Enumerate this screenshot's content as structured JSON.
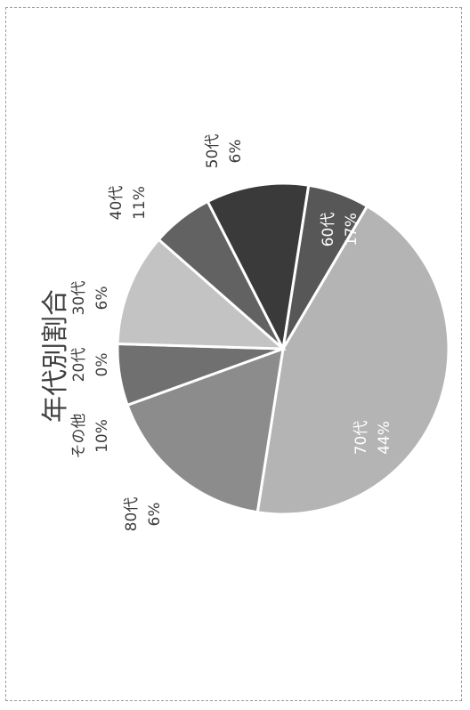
{
  "chart_data": {
    "type": "pie",
    "title": "年代別割合",
    "slices": [
      {
        "name": "70代",
        "value": 44,
        "label": "44%",
        "color": "#b4b4b4"
      },
      {
        "name": "60代",
        "value": 17,
        "label": "17%",
        "color": "#8c8c8c"
      },
      {
        "name": "50代",
        "value": 6,
        "label": "6%",
        "color": "#707070"
      },
      {
        "name": "40代",
        "value": 11,
        "label": "11%",
        "color": "#c3c3c3"
      },
      {
        "name": "30代",
        "value": 6,
        "label": "6%",
        "color": "#626262"
      },
      {
        "name": "20代",
        "value": 0,
        "label": "0%",
        "color": "#4a4a4a"
      },
      {
        "name": "その他",
        "value": 10,
        "label": "10%",
        "color": "#3a3a3a"
      },
      {
        "name": "80代",
        "value": 6,
        "label": "6%",
        "color": "#575757"
      }
    ],
    "legend": "none"
  }
}
